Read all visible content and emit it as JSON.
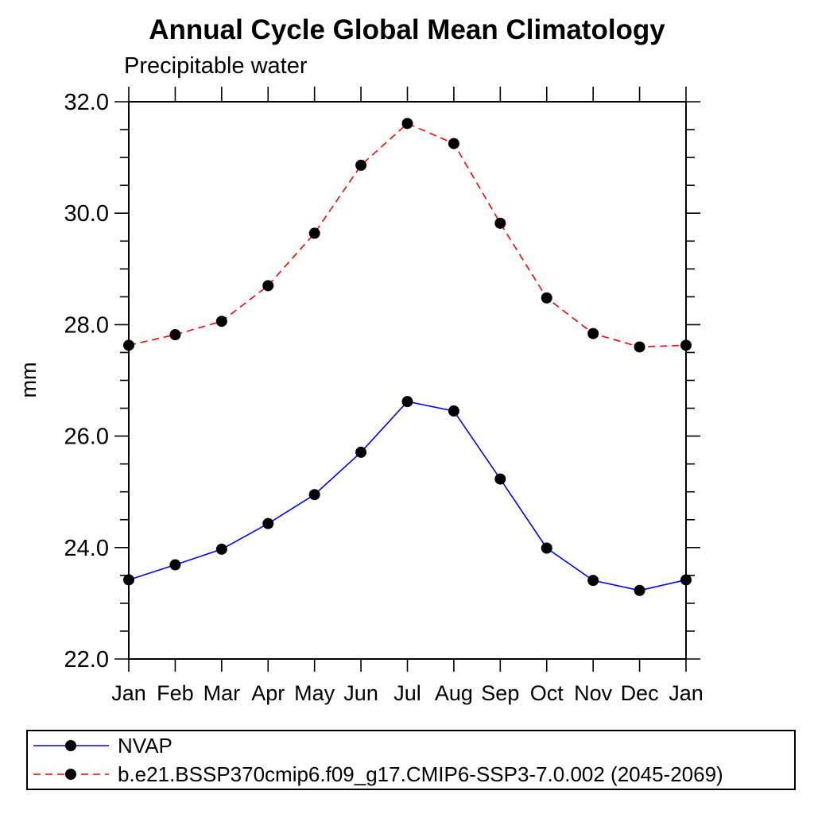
{
  "chart_data": {
    "type": "line",
    "title": "Annual Cycle Global Mean Climatology",
    "subtitle": "Precipitable water",
    "ylabel": "mm",
    "xlabel": "",
    "categories": [
      "Jan",
      "Feb",
      "Mar",
      "Apr",
      "May",
      "Jun",
      "Jul",
      "Aug",
      "Sep",
      "Oct",
      "Nov",
      "Dec",
      "Jan"
    ],
    "ylim": [
      22.0,
      32.0
    ],
    "y_major_step": 2.0,
    "y_minor_step": 0.5,
    "y_tick_labels": [
      "22.0",
      "24.0",
      "26.0",
      "28.0",
      "30.0",
      "32.0"
    ],
    "grid": false,
    "legend_position": "bottom-left-box",
    "marker": "filled-circle",
    "marker_color": "#000000",
    "axis_color": "#000000",
    "series": [
      {
        "name": "NVAP",
        "color": "#0000ff",
        "line_style": "solid",
        "values": [
          23.42,
          23.69,
          23.97,
          24.43,
          24.95,
          25.71,
          26.62,
          26.45,
          25.23,
          23.99,
          23.41,
          23.23,
          23.42
        ]
      },
      {
        "name": "b.e21.BSSP370cmip6.f09_g17.CMIP6-SSP3-7.0.002 (2045-2069)",
        "color": "#ff0000",
        "line_style": "dashed",
        "values": [
          27.63,
          27.82,
          28.06,
          28.7,
          29.64,
          30.86,
          31.61,
          31.25,
          29.82,
          28.48,
          27.84,
          27.6,
          27.63
        ]
      }
    ]
  }
}
